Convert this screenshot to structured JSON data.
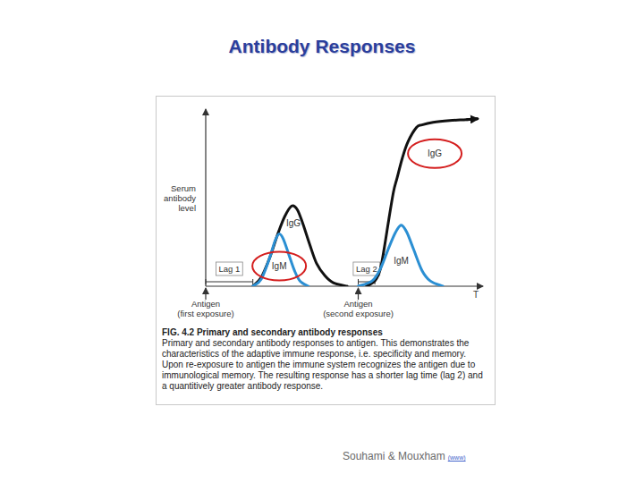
{
  "title": "Antibody Responses",
  "chart_data": {
    "type": "line",
    "y_label": "Serum antibody level",
    "x_label": "T",
    "xlim": [
      0,
      100
    ],
    "ylim": [
      0,
      100
    ],
    "tick_labels": false,
    "series": [
      {
        "name": "IgG",
        "color": "#111111",
        "x": [
          17,
          20,
          23,
          26,
          28.5,
          31,
          33,
          35,
          37.5,
          40,
          43,
          46,
          51
        ],
        "values": [
          0,
          5,
          16,
          30,
          40,
          46,
          44,
          36,
          24,
          13,
          6,
          2,
          0
        ]
      },
      {
        "name": "IgM",
        "color": "#2b8fd3",
        "x": [
          17,
          20,
          23,
          25,
          26.5,
          28,
          30,
          32,
          34,
          37
        ],
        "values": [
          0,
          4,
          16,
          26,
          30,
          27,
          18,
          9,
          3,
          0
        ]
      },
      {
        "name": "IgG",
        "color": "#111111",
        "marker": "arrow",
        "x": [
          58,
          61,
          63,
          64.5,
          66,
          67.7,
          69,
          71,
          73,
          76,
          78,
          82,
          88,
          94,
          98
        ],
        "values": [
          0,
          3,
          10,
          23,
          38,
          54,
          62,
          74,
          83,
          91,
          92.5,
          94,
          95,
          95.5,
          96
        ]
      },
      {
        "name": "IgM",
        "color": "#2b8fd3",
        "x": [
          55,
          60,
          63,
          66,
          68.5,
          70.5,
          72.5,
          75,
          78,
          81,
          85.5
        ],
        "values": [
          0,
          3,
          10,
          22,
          31,
          35,
          31,
          21,
          9,
          3,
          0
        ]
      }
    ],
    "annotations": [
      {
        "type": "lag",
        "text": "Lag 1",
        "x_start": 0,
        "x_end": 17
      },
      {
        "type": "lag",
        "text": "Lag 2",
        "x_start": 55,
        "x_end": 61
      },
      {
        "type": "antigen",
        "lines": [
          "Antigen",
          "(first exposure)"
        ],
        "x": 0
      },
      {
        "type": "antigen",
        "lines": [
          "Antigen",
          "(second exposure)"
        ],
        "x": 55
      }
    ]
  },
  "caption": {
    "heading": "FIG. 4.2 Primary and secondary antibody responses",
    "text": "Primary and secondary antibody responses to antigen. This demonstrates the characteristics of the adaptive immune response, i.e. specificity and memory. Upon re-exposure to antigen the immune system recognizes the antigen due to immunological memory. The resulting response has a shorter lag time (lag 2) and a quantitively greater antibody response."
  },
  "credit": {
    "text": "Souhami & Mouxham",
    "link": "(www)"
  }
}
